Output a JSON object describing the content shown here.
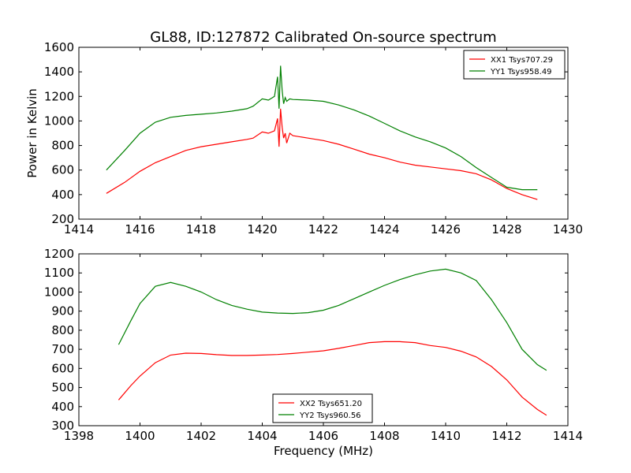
{
  "title": "GL88, ID:127872 Calibrated On-source spectrum",
  "chart_data": [
    {
      "type": "line",
      "xlabel": "",
      "ylabel": "Power in Kelvin",
      "xlim": [
        1414,
        1430
      ],
      "ylim": [
        200,
        1600
      ],
      "xticks": [
        1414,
        1416,
        1418,
        1420,
        1422,
        1424,
        1426,
        1428,
        1430
      ],
      "yticks": [
        200,
        400,
        600,
        800,
        1000,
        1200,
        1400,
        1600
      ],
      "legend": "top-right",
      "series": [
        {
          "name": "XX1 Tsys707.29",
          "color": "#ff0000",
          "x": [
            1414.9,
            1415.5,
            1416.0,
            1416.5,
            1417.0,
            1417.5,
            1418.0,
            1418.5,
            1419.0,
            1419.5,
            1419.7,
            1420.0,
            1420.2,
            1420.4,
            1420.5,
            1420.55,
            1420.6,
            1420.65,
            1420.7,
            1420.75,
            1420.8,
            1420.9,
            1421.0,
            1421.5,
            1422.0,
            1422.5,
            1423.0,
            1423.5,
            1424.0,
            1424.5,
            1425.0,
            1425.5,
            1426.0,
            1426.5,
            1427.0,
            1427.5,
            1428.0,
            1428.5,
            1429.0
          ],
          "y": [
            410,
            500,
            590,
            660,
            710,
            760,
            790,
            810,
            830,
            850,
            860,
            910,
            900,
            920,
            1020,
            790,
            1100,
            950,
            860,
            900,
            820,
            900,
            880,
            860,
            840,
            810,
            770,
            730,
            700,
            665,
            640,
            625,
            610,
            595,
            570,
            520,
            450,
            400,
            360
          ]
        },
        {
          "name": "YY1 Tsys958.49",
          "color": "#008000",
          "x": [
            1414.9,
            1415.5,
            1416.0,
            1416.5,
            1417.0,
            1417.5,
            1418.0,
            1418.5,
            1419.0,
            1419.5,
            1419.7,
            1420.0,
            1420.2,
            1420.4,
            1420.5,
            1420.55,
            1420.6,
            1420.65,
            1420.7,
            1420.75,
            1420.8,
            1420.9,
            1421.0,
            1421.5,
            1422.0,
            1422.5,
            1423.0,
            1423.5,
            1424.0,
            1424.5,
            1425.0,
            1425.5,
            1426.0,
            1426.5,
            1427.0,
            1427.5,
            1428.0,
            1428.5,
            1429.0
          ],
          "y": [
            600,
            760,
            900,
            990,
            1030,
            1045,
            1055,
            1065,
            1080,
            1100,
            1120,
            1180,
            1170,
            1200,
            1360,
            1100,
            1450,
            1250,
            1140,
            1190,
            1160,
            1180,
            1175,
            1170,
            1160,
            1130,
            1090,
            1040,
            980,
            920,
            870,
            830,
            780,
            710,
            620,
            540,
            460,
            440,
            440
          ]
        }
      ]
    },
    {
      "type": "line",
      "xlabel": "Frequency (MHz)",
      "ylabel": "",
      "xlim": [
        1398,
        1414
      ],
      "ylim": [
        300,
        1200
      ],
      "xticks": [
        1398,
        1400,
        1402,
        1404,
        1406,
        1408,
        1410,
        1412,
        1414
      ],
      "yticks": [
        300,
        400,
        500,
        600,
        700,
        800,
        900,
        1000,
        1100,
        1200
      ],
      "legend": "bottom-center",
      "series": [
        {
          "name": "XX2 Tsys651.20",
          "color": "#ff0000",
          "x": [
            1399.3,
            1399.7,
            1400.0,
            1400.5,
            1401.0,
            1401.5,
            1402.0,
            1402.5,
            1403.0,
            1403.5,
            1404.0,
            1404.5,
            1405.0,
            1405.5,
            1406.0,
            1406.5,
            1407.0,
            1407.5,
            1408.0,
            1408.5,
            1409.0,
            1409.5,
            1410.0,
            1410.5,
            1411.0,
            1411.5,
            1412.0,
            1412.5,
            1413.0,
            1413.3
          ],
          "y": [
            435,
            510,
            560,
            630,
            670,
            680,
            678,
            672,
            668,
            668,
            670,
            673,
            678,
            685,
            692,
            705,
            720,
            735,
            740,
            740,
            735,
            720,
            710,
            690,
            660,
            610,
            540,
            450,
            385,
            355
          ]
        },
        {
          "name": "YY2 Tsys960.56",
          "color": "#008000",
          "x": [
            1399.3,
            1399.7,
            1400.0,
            1400.5,
            1401.0,
            1401.5,
            1402.0,
            1402.5,
            1403.0,
            1403.5,
            1404.0,
            1404.5,
            1405.0,
            1405.5,
            1406.0,
            1406.5,
            1407.0,
            1407.5,
            1408.0,
            1408.5,
            1409.0,
            1409.5,
            1410.0,
            1410.5,
            1411.0,
            1411.5,
            1412.0,
            1412.5,
            1413.0,
            1413.3
          ],
          "y": [
            725,
            850,
            940,
            1030,
            1050,
            1030,
            1000,
            960,
            930,
            910,
            895,
            890,
            888,
            892,
            905,
            930,
            965,
            1000,
            1035,
            1065,
            1090,
            1110,
            1120,
            1100,
            1060,
            960,
            840,
            700,
            620,
            590
          ]
        }
      ]
    }
  ]
}
